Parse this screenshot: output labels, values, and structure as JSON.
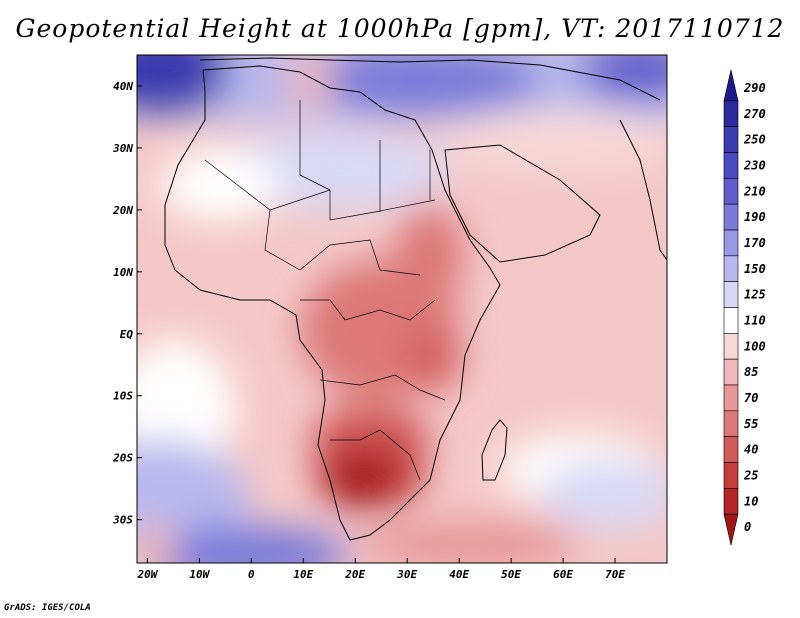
{
  "title": "Geopotential Height at 1000hPa [gpm], VT: 2017110712",
  "credit": "GrADS: IGES/COLA",
  "map": {
    "variable": "Geopotential Height at 1000hPa",
    "units": "gpm",
    "valid_time": "2017110712",
    "lon_range": [
      -22,
      80
    ],
    "lat_range": [
      -37,
      45
    ],
    "lat_ticks": [
      {
        "value": 40,
        "label": "40N"
      },
      {
        "value": 30,
        "label": "30N"
      },
      {
        "value": 20,
        "label": "20N"
      },
      {
        "value": 10,
        "label": "10N"
      },
      {
        "value": 0,
        "label": "EQ"
      },
      {
        "value": -10,
        "label": "10S"
      },
      {
        "value": -20,
        "label": "20S"
      },
      {
        "value": -30,
        "label": "30S"
      }
    ],
    "lon_ticks": [
      {
        "value": -20,
        "label": "20W"
      },
      {
        "value": -10,
        "label": "10W"
      },
      {
        "value": 0,
        "label": "0"
      },
      {
        "value": 10,
        "label": "10E"
      },
      {
        "value": 20,
        "label": "20E"
      },
      {
        "value": 30,
        "label": "30E"
      },
      {
        "value": 40,
        "label": "40E"
      },
      {
        "value": 50,
        "label": "50E"
      },
      {
        "value": 60,
        "label": "60E"
      },
      {
        "value": 70,
        "label": "70E"
      }
    ]
  },
  "colorbar": {
    "labels": [
      "290",
      "270",
      "250",
      "230",
      "210",
      "190",
      "170",
      "150",
      "125",
      "110",
      "100",
      "85",
      "70",
      "55",
      "40",
      "25",
      "10",
      "0"
    ],
    "colors": [
      "#1a1a8c",
      "#2a2a9e",
      "#3b3bb0",
      "#4a4ac0",
      "#5e5ece",
      "#7a7ad9",
      "#9898e3",
      "#b8b8ee",
      "#d8d8f6",
      "#ffffff",
      "#f7d8d8",
      "#f0b8b8",
      "#e69898",
      "#dc7878",
      "#d05a5a",
      "#c43e3e",
      "#b52626",
      "#a31414"
    ]
  },
  "features": {
    "high_pressure_region": "Mediterranean / northern Africa (blue)",
    "low_pressure_region": "southern Africa (dark red)"
  }
}
